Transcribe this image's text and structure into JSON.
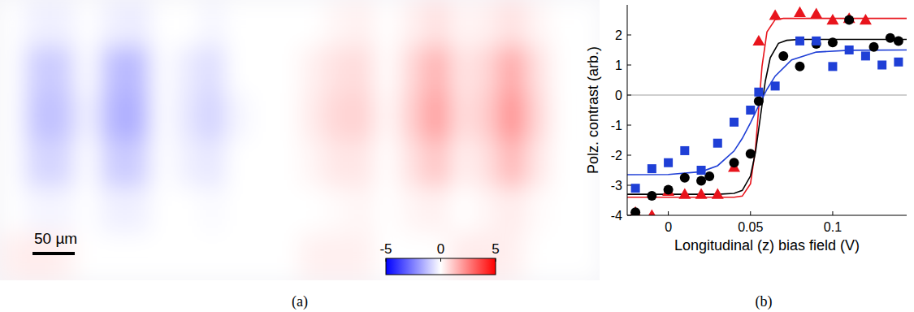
{
  "chart_data": [
    {
      "type": "heatmap",
      "label": "(a)",
      "scale_bar": "50 µm",
      "cells": [
        [
          0,
          -0.3,
          -0.3,
          0,
          -0.3,
          -0.4,
          0,
          0,
          -0.2,
          0,
          0,
          0,
          0,
          0.2,
          0.3,
          0,
          0.3,
          0.6,
          0.2,
          0.3,
          0.6,
          0.2,
          0,
          0
        ],
        [
          0,
          -1.0,
          -1.0,
          0,
          -1.3,
          -1.4,
          0,
          -0.4,
          -0.7,
          0,
          0,
          0,
          0.3,
          0.6,
          0.7,
          0,
          0.8,
          1.6,
          0.5,
          0.8,
          1.8,
          0.6,
          0,
          0
        ],
        [
          0,
          -1.2,
          -1.2,
          -0.2,
          -1.5,
          -1.6,
          0,
          -0.5,
          -0.9,
          -0.2,
          0,
          0,
          0.4,
          0.8,
          0.9,
          0.1,
          1.0,
          2.0,
          0.6,
          1.0,
          2.3,
          0.8,
          0,
          0
        ],
        [
          0,
          -0.8,
          -0.8,
          0,
          -1.0,
          -1.0,
          0,
          -0.3,
          -0.5,
          0,
          0,
          0,
          0.2,
          0.5,
          0.5,
          0,
          0.6,
          1.2,
          0.3,
          0.6,
          1.5,
          0.5,
          0,
          0
        ],
        [
          0,
          -0.2,
          -0.2,
          0,
          -0.3,
          -0.3,
          0,
          0,
          -0.1,
          0,
          0,
          0,
          0,
          0.1,
          0.2,
          0,
          0.2,
          0.3,
          0,
          0.2,
          0.4,
          0.1,
          0,
          0
        ],
        [
          0.3,
          0.4,
          0.3,
          0,
          0,
          0,
          0,
          0,
          0,
          0,
          0,
          0,
          0.3,
          0.3,
          0.3,
          0,
          0,
          0,
          0.4,
          0.4,
          0.3,
          0,
          0,
          0
        ]
      ],
      "colorbar": {
        "range": [
          -5,
          5
        ],
        "ticks": [
          -5,
          0,
          5
        ]
      },
      "tick_labels": false
    },
    {
      "type": "scatter",
      "label": "(b)",
      "x_label": "Longitudinal (z) bias field (V)",
      "y_label": "Polz. contrast (arb.)",
      "xlim": [
        -0.025,
        0.145
      ],
      "ylim": [
        -4,
        3
      ],
      "xticks": [
        0,
        0.05,
        0.1
      ],
      "yticks": [
        -4,
        -3,
        -2,
        -1,
        0,
        1,
        2
      ],
      "reference_line": 0,
      "grid": false,
      "series": [
        {
          "type": "scatter",
          "color": "#e8141c",
          "marker": "triangle",
          "x": [
            -0.02,
            -0.01,
            0,
            0.01,
            0.02,
            0.03,
            0.04,
            0.055,
            0.065,
            0.08,
            0.09,
            0.1,
            0.11,
            0.12
          ],
          "values": [
            -3.9,
            -4.0,
            -3.2,
            -3.3,
            -3.3,
            -3.3,
            -2.4,
            1.8,
            2.65,
            2.75,
            2.7,
            2.5,
            2.55,
            2.5
          ]
        },
        {
          "type": "scatter",
          "color": "#000000",
          "marker": "circle",
          "x": [
            -0.02,
            -0.01,
            0,
            0.01,
            0.02,
            0.025,
            0.04,
            0.05,
            0.055,
            0.07,
            0.08,
            0.09,
            0.1,
            0.11,
            0.125,
            0.135,
            0.14
          ],
          "values": [
            -3.9,
            -3.35,
            -3.15,
            -2.75,
            -2.85,
            -2.7,
            -2.25,
            -1.95,
            -0.2,
            1.3,
            0.95,
            1.7,
            1.75,
            2.5,
            1.6,
            1.9,
            1.8
          ]
        },
        {
          "type": "scatter",
          "color": "#1f3fd6",
          "marker": "square",
          "x": [
            -0.02,
            -0.01,
            0,
            0.01,
            0.02,
            0.03,
            0.04,
            0.05,
            0.055,
            0.065,
            0.08,
            0.09,
            0.1,
            0.11,
            0.12,
            0.13,
            0.14
          ],
          "values": [
            -3.1,
            -2.45,
            -2.25,
            -1.85,
            -2.5,
            -1.6,
            -0.9,
            -0.5,
            0.1,
            0.3,
            1.8,
            1.8,
            0.95,
            1.5,
            1.3,
            1.0,
            1.1
          ]
        },
        {
          "type": "line",
          "color": "#e8141c",
          "line_style": "solid",
          "x": [
            -0.025,
            0,
            0.04,
            0.045,
            0.05,
            0.053,
            0.055,
            0.057,
            0.06,
            0.065,
            0.07,
            0.1,
            0.145
          ],
          "values": [
            -3.4,
            -3.4,
            -3.4,
            -3.36,
            -2.95,
            -1.8,
            -0.43,
            0.95,
            2.1,
            2.51,
            2.55,
            2.55,
            2.55
          ]
        },
        {
          "type": "line",
          "color": "#000000",
          "line_style": "solid",
          "x": [
            -0.025,
            0.03,
            0.04,
            0.045,
            0.05,
            0.053,
            0.056,
            0.059,
            0.062,
            0.067,
            0.072,
            0.08,
            0.145
          ],
          "values": [
            -3.3,
            -3.3,
            -3.27,
            -3.17,
            -2.69,
            -1.91,
            -0.73,
            0.46,
            1.24,
            1.72,
            1.82,
            1.85,
            1.85
          ]
        },
        {
          "type": "line",
          "color": "#1f3fd6",
          "line_style": "solid",
          "x": [
            -0.025,
            0,
            0.02,
            0.03,
            0.04,
            0.045,
            0.05,
            0.053,
            0.056,
            0.06,
            0.065,
            0.075,
            0.09,
            0.11,
            0.145
          ],
          "values": [
            -2.65,
            -2.64,
            -2.55,
            -2.35,
            -1.86,
            -1.44,
            -0.92,
            -0.58,
            -0.23,
            0.19,
            0.63,
            1.17,
            1.43,
            1.49,
            1.5
          ]
        }
      ]
    }
  ]
}
